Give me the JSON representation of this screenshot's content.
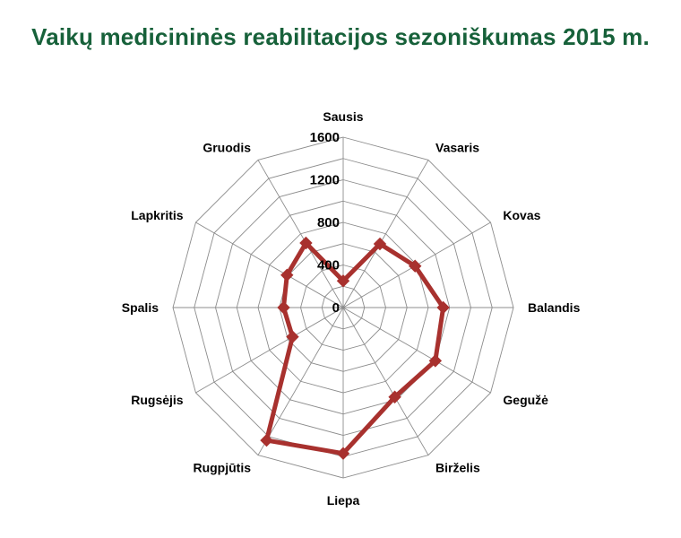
{
  "chart_data": {
    "type": "radar",
    "title": "Vaikų medicininės reabilitacijos sezoniškumas 2015 m.",
    "categories": [
      "Sausis",
      "Vasaris",
      "Kovas",
      "Balandis",
      "Gegužė",
      "Birželis",
      "Liepa",
      "Rugpjūtis",
      "Rugsėjis",
      "Spalis",
      "Lapkritis",
      "Gruodis"
    ],
    "series": [
      {
        "name": "2015",
        "values": [
          250,
          690,
          780,
          940,
          1000,
          970,
          1370,
          1440,
          550,
          560,
          610,
          700
        ],
        "color": "#a8312e"
      }
    ],
    "rmin": 0,
    "rmax": 1600,
    "ticks": [
      0,
      400,
      800,
      1200,
      1600
    ],
    "tick_labels": [
      "0",
      "400",
      "800",
      "1200",
      "1600"
    ],
    "gridlines": true,
    "legend": "none"
  }
}
